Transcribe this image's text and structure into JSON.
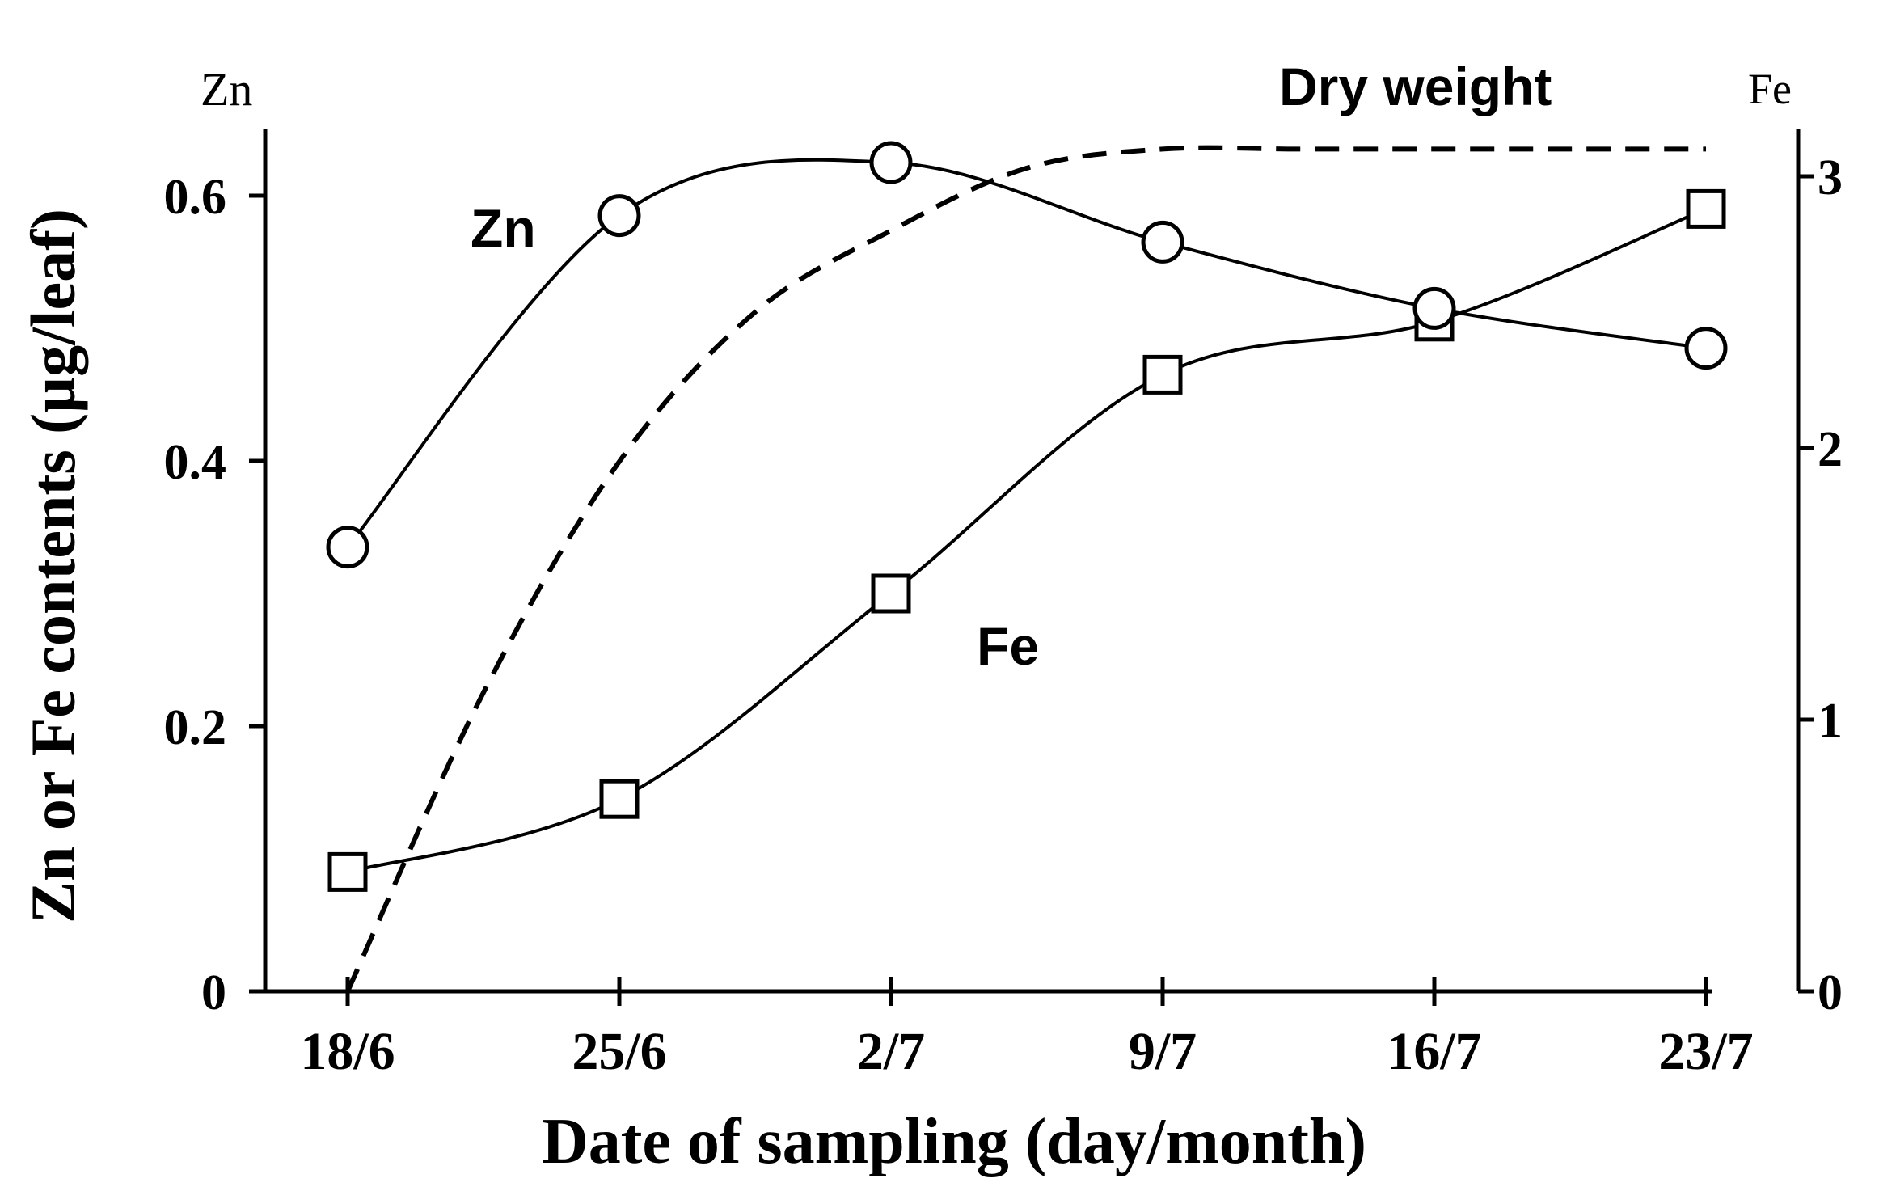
{
  "chart_data": {
    "type": "line",
    "categories": [
      "18/6",
      "25/6",
      "2/7",
      "9/7",
      "16/7",
      "23/7"
    ],
    "xlabel": "Date of sampling (day/month)",
    "ylabel": "Zn or Fe contents (µg/leaf)",
    "left_axis": {
      "label": "Zn",
      "ylim": [
        0,
        0.65
      ],
      "ticks": [
        0,
        0.2,
        0.4,
        0.6
      ],
      "tick_labels": [
        "0",
        "0.2",
        "0.4",
        "0.6"
      ]
    },
    "right_axis": {
      "label": "Fe",
      "ylim": [
        0,
        3.1
      ],
      "ticks": [
        0,
        1,
        2,
        3
      ],
      "tick_labels": [
        "0",
        "1",
        "2",
        "3"
      ]
    },
    "series": [
      {
        "name": "Zn",
        "axis": "left",
        "marker": "circle",
        "style": "solid",
        "values": [
          0.335,
          0.585,
          0.625,
          0.565,
          0.515,
          0.485
        ]
      },
      {
        "name": "Fe",
        "axis": "left",
        "marker": "square",
        "style": "solid",
        "values": [
          0.09,
          0.145,
          0.3,
          0.465,
          0.505,
          0.59
        ]
      },
      {
        "name": "Dry weight",
        "axis": "right",
        "marker": "none",
        "style": "dashed",
        "x": [
          0,
          0.5,
          1,
          1.5,
          2,
          2.5,
          3,
          3.5,
          4,
          4.5,
          5
        ],
        "values": [
          0.0,
          1.1,
          1.95,
          2.5,
          2.8,
          3.03,
          3.1,
          3.1,
          3.1,
          3.1,
          3.1
        ]
      }
    ],
    "annotations": [
      {
        "text": "Zn",
        "near_series": "Zn"
      },
      {
        "text": "Fe",
        "near_series": "Fe"
      },
      {
        "text": "Dry weight",
        "near_series": "Dry weight"
      }
    ]
  }
}
